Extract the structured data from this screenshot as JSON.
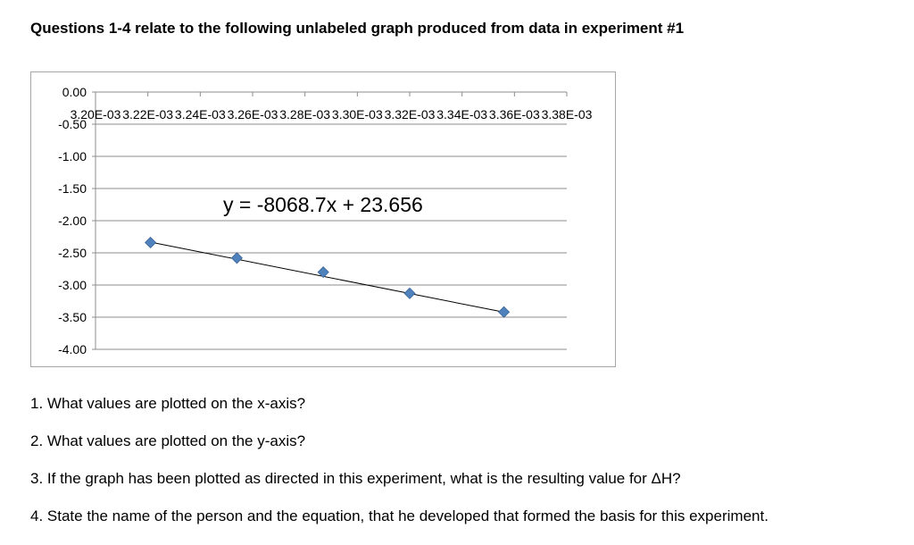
{
  "header": {
    "title": "Questions 1-4 relate to the following unlabeled graph produced from data in experiment #1"
  },
  "chart_data": {
    "type": "scatter",
    "title": "",
    "xlabel": "",
    "ylabel": "",
    "x_ticks": [
      "3.20E-03",
      "3.22E-03",
      "3.24E-03",
      "3.26E-03",
      "3.28E-03",
      "3.30E-03",
      "3.32E-03",
      "3.34E-03",
      "3.36E-03",
      "3.38E-03"
    ],
    "x_tick_values": [
      0.0032,
      0.00322,
      0.00324,
      0.00326,
      0.00328,
      0.0033,
      0.00332,
      0.00334,
      0.00336,
      0.00338
    ],
    "y_ticks": [
      "0.00",
      "-0.50",
      "-1.00",
      "-1.50",
      "-2.00",
      "-2.50",
      "-3.00",
      "-3.50",
      "-4.00"
    ],
    "y_tick_values": [
      0.0,
      -0.5,
      -1.0,
      -1.5,
      -2.0,
      -2.5,
      -3.0,
      -3.5,
      -4.0
    ],
    "xlim": [
      0.0032,
      0.00338
    ],
    "ylim": [
      -4.0,
      0.0
    ],
    "grid": "horizontal",
    "series": [
      {
        "x": [
          0.003221,
          0.003254,
          0.003287,
          0.00332,
          0.003356
        ],
        "y": [
          -2.34,
          -2.58,
          -2.8,
          -3.13,
          -3.42
        ],
        "color": "#4f81bd",
        "marker": "diamond"
      }
    ],
    "trendline": {
      "equation": "y = -8068.7x + 23.656",
      "slope": -8068.7,
      "intercept": 23.656,
      "x_range": [
        0.003221,
        0.003356
      ],
      "color": "#000000"
    }
  },
  "questions": [
    "1. What values are plotted on the x-axis?",
    "2. What values are plotted on the y-axis?",
    "3. If the graph has been plotted as directed in this experiment, what is the resulting value for ΔH?",
    "4. State the name of the person and the equation, that he developed that formed the basis for this experiment."
  ]
}
